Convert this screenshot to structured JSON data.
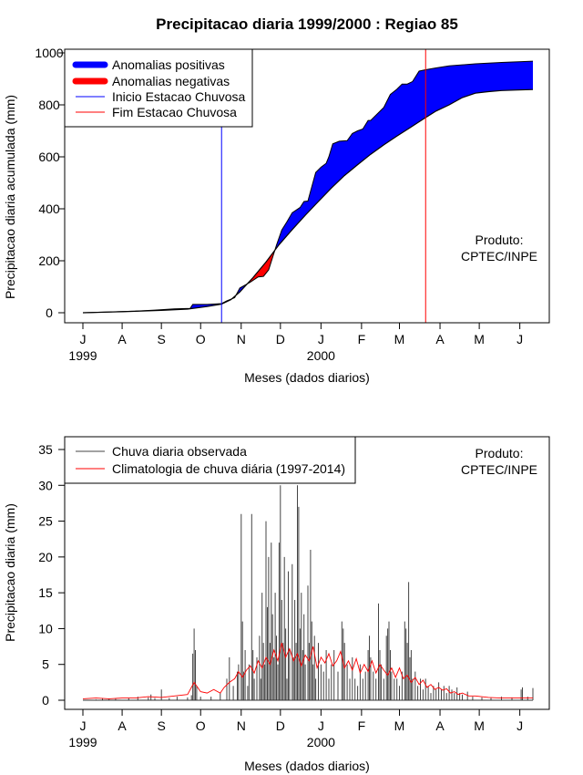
{
  "title": "Precipitacao diaria 1999/2000 : Regiao 85",
  "colors": {
    "positive": "#0000ff",
    "negative": "#ff0000",
    "onset": "#0000ff",
    "end": "#ff0000",
    "observed": "#444444",
    "climatology": "#ff0000"
  },
  "chart_data": [
    {
      "type": "area",
      "ylabel": "Precipitacao diaria acumulada (mm)",
      "xlabel": "Meses (dados diarios)",
      "ylim": [
        0,
        1000
      ],
      "xlim_days": [
        0,
        360
      ],
      "yticks": [
        0,
        200,
        400,
        600,
        800,
        1000
      ],
      "month_ticks": [
        {
          "label": "J",
          "day": 0
        },
        {
          "label": "A",
          "day": 30
        },
        {
          "label": "S",
          "day": 60
        },
        {
          "label": "O",
          "day": 90
        },
        {
          "label": "N",
          "day": 121
        },
        {
          "label": "D",
          "day": 151
        },
        {
          "label": "J",
          "day": 182
        },
        {
          "label": "F",
          "day": 213
        },
        {
          "label": "M",
          "day": 242
        },
        {
          "label": "A",
          "day": 273
        },
        {
          "label": "M",
          "day": 303
        },
        {
          "label": "J",
          "day": 334
        }
      ],
      "year_labels": [
        {
          "label": "1999",
          "day": 0
        },
        {
          "label": "2000",
          "day": 182
        }
      ],
      "onset_day": 106,
      "end_day": 262,
      "legend": [
        "Anomalias positivas",
        "Anomalias negativas",
        "Inicio Estacao Chuvosa",
        "Fim Estacao Chuvosa"
      ],
      "annotation": [
        "Produto:",
        "CPTEC/INPE"
      ],
      "series": [
        {
          "name": "observed_accumulated",
          "points": [
            [
              0,
              0
            ],
            [
              20,
              3
            ],
            [
              40,
              6
            ],
            [
              55,
              10
            ],
            [
              70,
              15
            ],
            [
              82,
              17
            ],
            [
              84,
              32
            ],
            [
              95,
              32
            ],
            [
              106,
              35
            ],
            [
              110,
              46
            ],
            [
              116,
              58
            ],
            [
              120,
              95
            ],
            [
              128,
              118
            ],
            [
              134,
              138
            ],
            [
              138,
              140
            ],
            [
              142,
              165
            ],
            [
              148,
              260
            ],
            [
              152,
              318
            ],
            [
              156,
              350
            ],
            [
              160,
              385
            ],
            [
              166,
              405
            ],
            [
              169,
              428
            ],
            [
              172,
              430
            ],
            [
              175,
              485
            ],
            [
              178,
              540
            ],
            [
              182,
              560
            ],
            [
              186,
              575
            ],
            [
              188,
              600
            ],
            [
              191,
              650
            ],
            [
              196,
              660
            ],
            [
              202,
              662
            ],
            [
              206,
              690
            ],
            [
              210,
              700
            ],
            [
              214,
              707
            ],
            [
              218,
              740
            ],
            [
              220,
              740
            ],
            [
              226,
              770
            ],
            [
              230,
              790
            ],
            [
              235,
              840
            ],
            [
              240,
              860
            ],
            [
              244,
              880
            ],
            [
              248,
              880
            ],
            [
              252,
              890
            ],
            [
              257,
              930
            ],
            [
              262,
              935
            ],
            [
              270,
              942
            ],
            [
              280,
              950
            ],
            [
              300,
              958
            ],
            [
              320,
              963
            ],
            [
              344,
              968
            ]
          ]
        },
        {
          "name": "climatology_accumulated",
          "points": [
            [
              0,
              0
            ],
            [
              30,
              4
            ],
            [
              60,
              9
            ],
            [
              80,
              14
            ],
            [
              95,
              24
            ],
            [
              106,
              33
            ],
            [
              113,
              50
            ],
            [
              120,
              80
            ],
            [
              130,
              135
            ],
            [
              140,
              195
            ],
            [
              150,
              262
            ],
            [
              160,
              320
            ],
            [
              170,
              375
            ],
            [
              180,
              428
            ],
            [
              190,
              480
            ],
            [
              200,
              528
            ],
            [
              210,
              570
            ],
            [
              220,
              610
            ],
            [
              230,
              646
            ],
            [
              240,
              680
            ],
            [
              250,
              712
            ],
            [
              260,
              745
            ],
            [
              270,
              776
            ],
            [
              280,
              800
            ],
            [
              290,
              828
            ],
            [
              300,
              845
            ],
            [
              310,
              851
            ],
            [
              320,
              855
            ],
            [
              330,
              857
            ],
            [
              344,
              859
            ]
          ]
        }
      ]
    },
    {
      "type": "bar",
      "ylabel": "Precipitacao diaria (mm)",
      "xlabel": "Meses (dados diarios)",
      "ylim": [
        0,
        36
      ],
      "yticks": [
        0,
        5,
        10,
        15,
        20,
        25,
        30,
        35
      ],
      "legend": [
        "Chuva diaria observada",
        "Climatologia de chuva diária (1997-2014)"
      ],
      "annotation": [
        "Produto:",
        "CPTEC/INPE"
      ],
      "observed_daily": [
        [
          10,
          0.1
        ],
        [
          15,
          0.3
        ],
        [
          20,
          0.2
        ],
        [
          25,
          0.2
        ],
        [
          35,
          0.3
        ],
        [
          42,
          0.5
        ],
        [
          50,
          0.4
        ],
        [
          52,
          0.8
        ],
        [
          55,
          0.3
        ],
        [
          60,
          1.5
        ],
        [
          66,
          0.3
        ],
        [
          72,
          0.5
        ],
        [
          80,
          0.4
        ],
        [
          83,
          0.7
        ],
        [
          84,
          6.5
        ],
        [
          85,
          10
        ],
        [
          86,
          7
        ],
        [
          87,
          2
        ],
        [
          90,
          0.5
        ],
        [
          98,
          0.5
        ],
        [
          105,
          1
        ],
        [
          110,
          3
        ],
        [
          112,
          6
        ],
        [
          115,
          2
        ],
        [
          118,
          4
        ],
        [
          119,
          5
        ],
        [
          121,
          26
        ],
        [
          122,
          11
        ],
        [
          123,
          4
        ],
        [
          124,
          7
        ],
        [
          126,
          2
        ],
        [
          127,
          5
        ],
        [
          129,
          26
        ],
        [
          130,
          7
        ],
        [
          131,
          3
        ],
        [
          133,
          6
        ],
        [
          135,
          9
        ],
        [
          136,
          3
        ],
        [
          137,
          15
        ],
        [
          138,
          8
        ],
        [
          139,
          5
        ],
        [
          140,
          25
        ],
        [
          141,
          13
        ],
        [
          142,
          20
        ],
        [
          143,
          8
        ],
        [
          144,
          22
        ],
        [
          145,
          12
        ],
        [
          146,
          6
        ],
        [
          147,
          15
        ],
        [
          148,
          9
        ],
        [
          149,
          5
        ],
        [
          150,
          22
        ],
        [
          151,
          30
        ],
        [
          152,
          14
        ],
        [
          153,
          8
        ],
        [
          154,
          20
        ],
        [
          155,
          10
        ],
        [
          156,
          3
        ],
        [
          157,
          18
        ],
        [
          158,
          7
        ],
        [
          160,
          19
        ],
        [
          161,
          6
        ],
        [
          162,
          14
        ],
        [
          163,
          8
        ],
        [
          164,
          30
        ],
        [
          165,
          27
        ],
        [
          166,
          10
        ],
        [
          167,
          15
        ],
        [
          168,
          7
        ],
        [
          169,
          12
        ],
        [
          170,
          5
        ],
        [
          172,
          16
        ],
        [
          173,
          8
        ],
        [
          174,
          21
        ],
        [
          175,
          11
        ],
        [
          176,
          5
        ],
        [
          177,
          9
        ],
        [
          178,
          3
        ],
        [
          180,
          8
        ],
        [
          182,
          5
        ],
        [
          184,
          4
        ],
        [
          186,
          7
        ],
        [
          188,
          3
        ],
        [
          190,
          5
        ],
        [
          192,
          7
        ],
        [
          195,
          4
        ],
        [
          198,
          11
        ],
        [
          199,
          10
        ],
        [
          200,
          8
        ],
        [
          202,
          5
        ],
        [
          204,
          3
        ],
        [
          206,
          6
        ],
        [
          208,
          3
        ],
        [
          210,
          2
        ],
        [
          212,
          5
        ],
        [
          214,
          3
        ],
        [
          216,
          4
        ],
        [
          218,
          7
        ],
        [
          219,
          9
        ],
        [
          220,
          6
        ],
        [
          222,
          4
        ],
        [
          224,
          3
        ],
        [
          226,
          13.5
        ],
        [
          227,
          7
        ],
        [
          228,
          5
        ],
        [
          230,
          3
        ],
        [
          232,
          9
        ],
        [
          233,
          10
        ],
        [
          234,
          11
        ],
        [
          235,
          7
        ],
        [
          236,
          4
        ],
        [
          238,
          3
        ],
        [
          240,
          3
        ],
        [
          242,
          2
        ],
        [
          244,
          4
        ],
        [
          246,
          11
        ],
        [
          247,
          10
        ],
        [
          248,
          8
        ],
        [
          249,
          16.5
        ],
        [
          250,
          6
        ],
        [
          251,
          7
        ],
        [
          252,
          3
        ],
        [
          254,
          4
        ],
        [
          256,
          2
        ],
        [
          258,
          3
        ],
        [
          260,
          1.5
        ],
        [
          262,
          3
        ],
        [
          264,
          2
        ],
        [
          266,
          1
        ],
        [
          268,
          2
        ],
        [
          270,
          1.5
        ],
        [
          272,
          2.5
        ],
        [
          274,
          1.5
        ],
        [
          276,
          2
        ],
        [
          278,
          1
        ],
        [
          280,
          2
        ],
        [
          282,
          1.5
        ],
        [
          284,
          1
        ],
        [
          286,
          1.8
        ],
        [
          288,
          1
        ],
        [
          290,
          0.8
        ],
        [
          294,
          1.2
        ],
        [
          298,
          0.5
        ],
        [
          305,
          0.4
        ],
        [
          312,
          0.3
        ],
        [
          320,
          0.5
        ],
        [
          328,
          0.4
        ],
        [
          335,
          1.5
        ],
        [
          336,
          1.8
        ],
        [
          340,
          0.5
        ],
        [
          344,
          1.7
        ]
      ],
      "climatology_daily": [
        [
          0,
          0.2
        ],
        [
          10,
          0.3
        ],
        [
          20,
          0.2
        ],
        [
          30,
          0.3
        ],
        [
          40,
          0.3
        ],
        [
          50,
          0.5
        ],
        [
          60,
          0.4
        ],
        [
          70,
          0.6
        ],
        [
          80,
          0.8
        ],
        [
          85,
          2.5
        ],
        [
          90,
          1.2
        ],
        [
          95,
          1.0
        ],
        [
          100,
          1.5
        ],
        [
          105,
          1.0
        ],
        [
          108,
          1.8
        ],
        [
          112,
          2.5
        ],
        [
          116,
          3.0
        ],
        [
          119,
          4.0
        ],
        [
          122,
          3.2
        ],
        [
          125,
          4.2
        ],
        [
          128,
          4.8
        ],
        [
          131,
          3.8
        ],
        [
          134,
          5.5
        ],
        [
          137,
          4.5
        ],
        [
          140,
          6.0
        ],
        [
          143,
          5.0
        ],
        [
          146,
          7.0
        ],
        [
          149,
          5.5
        ],
        [
          152,
          8.0
        ],
        [
          155,
          6.0
        ],
        [
          158,
          7.2
        ],
        [
          161,
          5.5
        ],
        [
          164,
          6.5
        ],
        [
          167,
          4.8
        ],
        [
          170,
          6.3
        ],
        [
          173,
          5.5
        ],
        [
          176,
          7.5
        ],
        [
          179,
          4.5
        ],
        [
          182,
          6.0
        ],
        [
          185,
          5.2
        ],
        [
          188,
          6.5
        ],
        [
          191,
          4.8
        ],
        [
          194,
          5.5
        ],
        [
          197,
          6.8
        ],
        [
          200,
          4.5
        ],
        [
          203,
          5.5
        ],
        [
          206,
          4.2
        ],
        [
          209,
          5.8
        ],
        [
          212,
          3.8
        ],
        [
          215,
          5.0
        ],
        [
          218,
          4.0
        ],
        [
          221,
          5.5
        ],
        [
          224,
          3.8
        ],
        [
          227,
          5.0
        ],
        [
          230,
          4.2
        ],
        [
          233,
          3.5
        ],
        [
          236,
          4.5
        ],
        [
          239,
          3.2
        ],
        [
          242,
          4.5
        ],
        [
          245,
          3.0
        ],
        [
          248,
          3.5
        ],
        [
          251,
          2.5
        ],
        [
          254,
          3.2
        ],
        [
          257,
          2.2
        ],
        [
          260,
          2.8
        ],
        [
          263,
          1.8
        ],
        [
          266,
          2.2
        ],
        [
          269,
          1.5
        ],
        [
          272,
          1.8
        ],
        [
          275,
          1.4
        ],
        [
          278,
          1.6
        ],
        [
          281,
          1.0
        ],
        [
          284,
          1.2
        ],
        [
          287,
          0.8
        ],
        [
          290,
          1.0
        ],
        [
          295,
          0.6
        ],
        [
          300,
          0.6
        ],
        [
          310,
          0.4
        ],
        [
          320,
          0.3
        ],
        [
          330,
          0.3
        ],
        [
          344,
          0.3
        ]
      ]
    }
  ]
}
